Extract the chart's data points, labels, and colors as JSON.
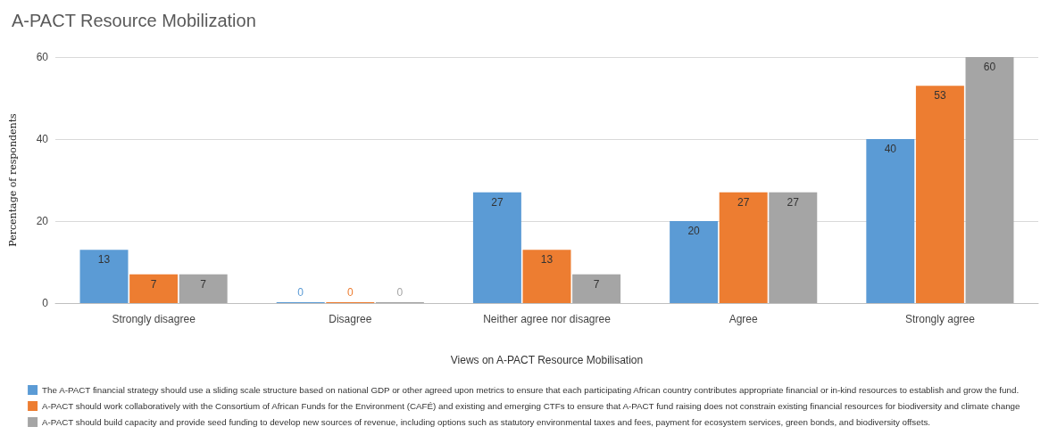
{
  "chart_data": {
    "type": "bar",
    "title": "A-PACT Resource Mobilization",
    "xlabel": "Views on A-PACT Resource Mobilisation",
    "ylabel": "Percentage of respondents",
    "categories": [
      "Strongly disagree",
      "Disagree",
      "Neither agree nor disagree",
      "Agree",
      "Strongly agree"
    ],
    "series": [
      {
        "name": "The A-PACT financial strategy should use a sliding scale structure based on national GDP or other agreed upon metrics to ensure that each participating African country contributes appropriate financial or in-kind resources to establish and grow the fund.",
        "color": "#5b9bd5",
        "values": [
          13,
          0,
          27,
          20,
          40
        ]
      },
      {
        "name": "A-PACT should work collaboratively with the Consortium of African Funds for the Environment (CAFÉ) and existing and emerging CTFs to ensure that A-PACT fund raising does not constrain existing financial resources for biodiversity and climate change",
        "color": "#ed7d31",
        "values": [
          7,
          0,
          13,
          27,
          53
        ]
      },
      {
        "name": "A-PACT should build capacity and provide seed funding to develop new sources of revenue, including options such as statutory environmental taxes and fees, payment for ecosystem services, green bonds, and biodiversity offsets.",
        "color": "#a5a5a5",
        "values": [
          7,
          0,
          7,
          27,
          60
        ]
      }
    ],
    "ylim": [
      0,
      60
    ],
    "yticks": [
      0,
      20,
      40,
      60
    ],
    "grid": "y",
    "data_labels": true,
    "legend": "bottom"
  }
}
